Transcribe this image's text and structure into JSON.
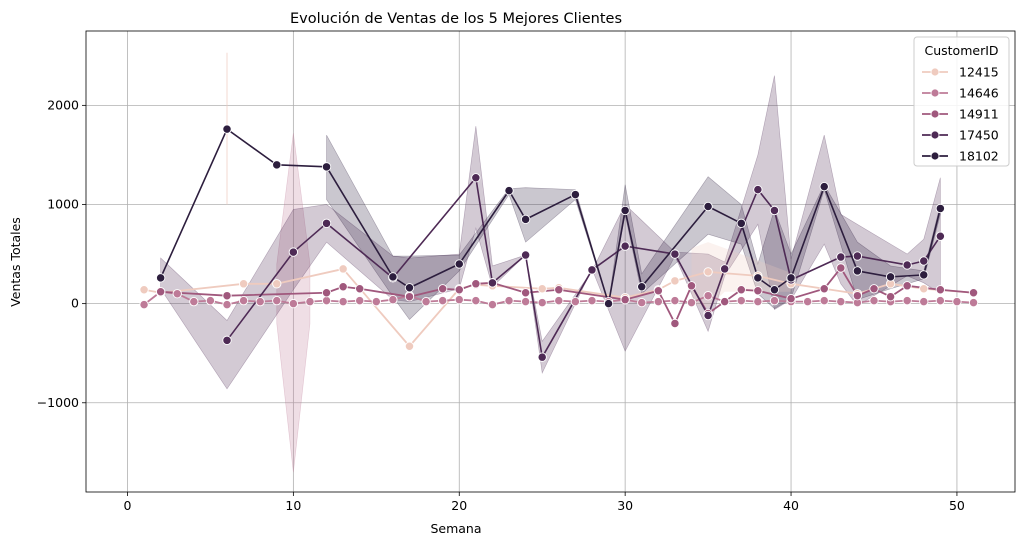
{
  "chart_data": {
    "type": "line",
    "title": "Evolución de Ventas de los 5 Mejores Clientes",
    "xlabel": "Semana",
    "ylabel": "Ventas Totales",
    "xlim": [
      -2.5,
      53.5
    ],
    "ylim": [
      -1900,
      2750
    ],
    "xticks": [
      0,
      10,
      20,
      30,
      40,
      50
    ],
    "yticks": [
      -1000,
      0,
      1000,
      2000
    ],
    "ytick_labels": [
      "−1000",
      "0",
      "1000",
      "2000"
    ],
    "grid": true,
    "legend": {
      "title": "CustomerID",
      "placement": "top-right"
    },
    "series": [
      {
        "name": "12415",
        "color": "#efcbbf",
        "points": [
          [
            1,
            140
          ],
          [
            2,
            110
          ],
          [
            7,
            200
          ],
          [
            9,
            200
          ],
          [
            13,
            350
          ],
          [
            17,
            -430
          ],
          [
            20,
            150
          ],
          [
            21,
            190
          ],
          [
            22,
            180
          ],
          [
            25,
            150
          ],
          [
            26,
            160
          ],
          [
            30,
            60
          ],
          [
            32,
            140
          ],
          [
            33,
            230
          ],
          [
            35,
            320
          ],
          [
            38,
            280
          ],
          [
            40,
            200
          ],
          [
            42,
            150
          ],
          [
            44,
            100
          ],
          [
            46,
            200
          ],
          [
            48,
            150
          ],
          [
            51,
            110
          ]
        ],
        "band": [
          [
            6,
            1000,
            2530
          ]
        ],
        "band_area": [
          [
            34,
            0,
            560
          ],
          [
            35,
            -40,
            620
          ],
          [
            36,
            120,
            560
          ],
          [
            40,
            120,
            310
          ]
        ]
      },
      {
        "name": "14646",
        "color": "#be7b98",
        "points": [
          [
            1,
            -10
          ],
          [
            2,
            120
          ],
          [
            3,
            100
          ],
          [
            4,
            20
          ],
          [
            5,
            30
          ],
          [
            6,
            -10
          ],
          [
            7,
            30
          ],
          [
            8,
            20
          ],
          [
            9,
            30
          ],
          [
            10,
            0
          ],
          [
            11,
            20
          ],
          [
            12,
            30
          ],
          [
            13,
            20
          ],
          [
            14,
            30
          ],
          [
            15,
            20
          ],
          [
            16,
            40
          ],
          [
            17,
            80
          ],
          [
            18,
            20
          ],
          [
            19,
            30
          ],
          [
            20,
            40
          ],
          [
            21,
            30
          ],
          [
            22,
            -10
          ],
          [
            23,
            30
          ],
          [
            24,
            20
          ],
          [
            25,
            10
          ],
          [
            26,
            30
          ],
          [
            27,
            20
          ],
          [
            28,
            30
          ],
          [
            29,
            20
          ],
          [
            30,
            40
          ],
          [
            31,
            10
          ],
          [
            32,
            20
          ],
          [
            33,
            30
          ],
          [
            34,
            10
          ],
          [
            35,
            80
          ],
          [
            36,
            20
          ],
          [
            37,
            30
          ],
          [
            38,
            20
          ],
          [
            39,
            30
          ],
          [
            40,
            20
          ],
          [
            41,
            20
          ],
          [
            42,
            30
          ],
          [
            43,
            20
          ],
          [
            44,
            10
          ],
          [
            45,
            30
          ],
          [
            46,
            20
          ],
          [
            47,
            30
          ],
          [
            48,
            20
          ],
          [
            49,
            30
          ],
          [
            50,
            20
          ],
          [
            51,
            10
          ]
        ],
        "band": [
          [
            10,
            -1700,
            1720
          ]
        ]
      },
      {
        "name": "14911",
        "color": "#a0587d",
        "points": [
          [
            2,
            120
          ],
          [
            6,
            80
          ],
          [
            12,
            110
          ],
          [
            13,
            170
          ],
          [
            14,
            150
          ],
          [
            17,
            70
          ],
          [
            19,
            150
          ],
          [
            20,
            140
          ],
          [
            21,
            200
          ],
          [
            22,
            210
          ],
          [
            24,
            110
          ],
          [
            26,
            140
          ],
          [
            30,
            40
          ],
          [
            32,
            130
          ],
          [
            33,
            -200
          ],
          [
            34,
            180
          ],
          [
            35,
            -100
          ],
          [
            36,
            20
          ],
          [
            37,
            140
          ],
          [
            38,
            130
          ],
          [
            40,
            50
          ],
          [
            42,
            150
          ],
          [
            43,
            360
          ],
          [
            44,
            80
          ],
          [
            45,
            150
          ],
          [
            46,
            70
          ],
          [
            47,
            180
          ],
          [
            49,
            140
          ],
          [
            51,
            110
          ]
        ]
      },
      {
        "name": "17450",
        "color": "#4e2a55",
        "points": [
          [
            6,
            -370
          ],
          [
            10,
            520
          ],
          [
            12,
            810
          ],
          [
            16,
            260
          ],
          [
            21,
            1270
          ],
          [
            22,
            210
          ],
          [
            24,
            490
          ],
          [
            25,
            -540
          ],
          [
            28,
            340
          ],
          [
            30,
            580
          ],
          [
            33,
            500
          ],
          [
            35,
            -120
          ],
          [
            36,
            350
          ],
          [
            38,
            1150
          ],
          [
            39,
            940
          ],
          [
            40,
            240
          ],
          [
            43,
            470
          ],
          [
            44,
            480
          ],
          [
            47,
            390
          ],
          [
            48,
            430
          ],
          [
            49,
            680
          ]
        ]
      },
      {
        "name": "18102",
        "color": "#2d1e3e",
        "points": [
          [
            2,
            260
          ],
          [
            6,
            1760
          ],
          [
            9,
            1400
          ],
          [
            12,
            1380
          ],
          [
            16,
            270
          ],
          [
            17,
            160
          ],
          [
            20,
            400
          ],
          [
            23,
            1140
          ],
          [
            24,
            850
          ],
          [
            27,
            1100
          ],
          [
            29,
            0
          ],
          [
            30,
            940
          ],
          [
            31,
            170
          ],
          [
            35,
            980
          ],
          [
            37,
            810
          ],
          [
            38,
            260
          ],
          [
            39,
            140
          ],
          [
            40,
            260
          ],
          [
            42,
            1180
          ],
          [
            44,
            330
          ],
          [
            46,
            270
          ],
          [
            48,
            290
          ],
          [
            49,
            960
          ]
        ]
      }
    ],
    "confidence_bands": [
      {
        "series": "12415",
        "upper": [
          [
            6,
            2530
          ],
          [
            6,
            2530
          ]
        ],
        "lower": [
          [
            6,
            1000
          ],
          [
            6,
            1000
          ]
        ]
      },
      {
        "series": "14646",
        "upper": [
          [
            9,
            400
          ],
          [
            10,
            1720
          ],
          [
            11,
            400
          ]
        ],
        "lower": [
          [
            9,
            -200
          ],
          [
            10,
            -1700
          ],
          [
            11,
            -200
          ]
        ]
      },
      {
        "series": "17450",
        "upper": [
          [
            2,
            460
          ],
          [
            6,
            -170
          ],
          [
            10,
            950
          ],
          [
            12,
            1000
          ],
          [
            16,
            480
          ],
          [
            17,
            460
          ],
          [
            20,
            500
          ],
          [
            21,
            1790
          ],
          [
            22,
            380
          ],
          [
            24,
            490
          ],
          [
            25,
            -380
          ],
          [
            28,
            330
          ],
          [
            30,
            1000
          ],
          [
            33,
            520
          ],
          [
            35,
            500
          ],
          [
            36,
            420
          ],
          [
            38,
            1500
          ],
          [
            39,
            2300
          ],
          [
            40,
            450
          ],
          [
            42,
            1700
          ],
          [
            43,
            900
          ],
          [
            44,
            800
          ],
          [
            47,
            500
          ],
          [
            48,
            650
          ],
          [
            49,
            1270
          ]
        ],
        "lower": [
          [
            2,
            150
          ],
          [
            6,
            -860
          ],
          [
            10,
            140
          ],
          [
            12,
            620
          ],
          [
            16,
            40
          ],
          [
            17,
            20
          ],
          [
            20,
            150
          ],
          [
            21,
            760
          ],
          [
            22,
            170
          ],
          [
            24,
            490
          ],
          [
            25,
            -700
          ],
          [
            28,
            350
          ],
          [
            30,
            -480
          ],
          [
            33,
            480
          ],
          [
            35,
            -280
          ],
          [
            36,
            280
          ],
          [
            38,
            800
          ],
          [
            39,
            -60
          ],
          [
            40,
            40
          ],
          [
            42,
            600
          ],
          [
            43,
            200
          ],
          [
            44,
            -20
          ],
          [
            47,
            280
          ],
          [
            48,
            210
          ],
          [
            49,
            100
          ]
        ]
      },
      {
        "series": "18102",
        "upper": [
          [
            12,
            1700
          ],
          [
            16,
            480
          ],
          [
            17,
            480
          ],
          [
            20,
            490
          ],
          [
            23,
            1160
          ],
          [
            24,
            1170
          ],
          [
            27,
            1150
          ],
          [
            29,
            0
          ],
          [
            30,
            1200
          ],
          [
            31,
            300
          ],
          [
            35,
            1280
          ],
          [
            37,
            1000
          ],
          [
            38,
            400
          ],
          [
            39,
            950
          ],
          [
            40,
            500
          ],
          [
            42,
            1200
          ],
          [
            44,
            620
          ],
          [
            46,
            380
          ],
          [
            48,
            330
          ],
          [
            49,
            1000
          ]
        ],
        "lower": [
          [
            12,
            1050
          ],
          [
            16,
            70
          ],
          [
            17,
            -160
          ],
          [
            20,
            330
          ],
          [
            23,
            1100
          ],
          [
            24,
            620
          ],
          [
            27,
            1050
          ],
          [
            29,
            0
          ],
          [
            30,
            900
          ],
          [
            31,
            100
          ],
          [
            35,
            700
          ],
          [
            37,
            600
          ],
          [
            38,
            100
          ],
          [
            39,
            -50
          ],
          [
            40,
            50
          ],
          [
            42,
            1150
          ],
          [
            44,
            40
          ],
          [
            46,
            150
          ],
          [
            48,
            250
          ],
          [
            49,
            900
          ]
        ]
      }
    ]
  }
}
